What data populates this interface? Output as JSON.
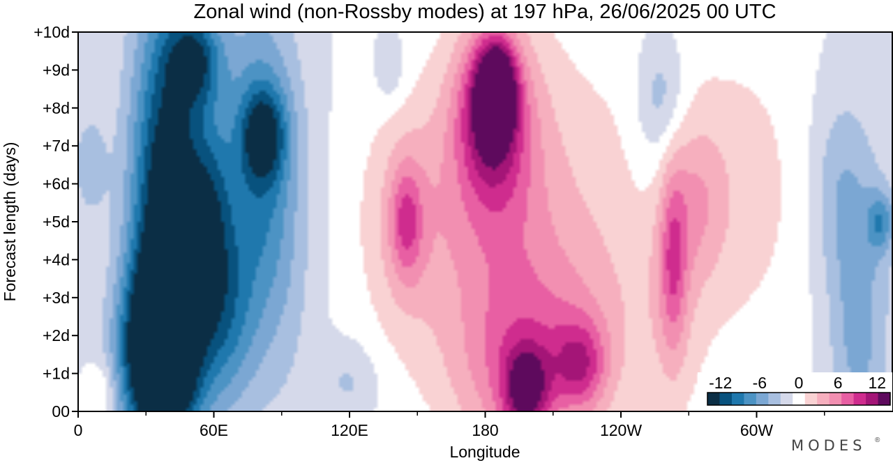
{
  "chart_data": {
    "type": "heatmap",
    "title": "Zonal wind (non-Rossby modes) at 197 hPa,  26/06/2025  00 UTC",
    "xlabel": "Longitude",
    "ylabel": "Forecast length (days)",
    "x_ticks": [
      "0",
      "60E",
      "120E",
      "180",
      "120W",
      "60W"
    ],
    "x_tick_values": [
      0,
      60,
      120,
      180,
      240,
      300
    ],
    "x_range": [
      0,
      360
    ],
    "y_ticks": [
      "00",
      "+1d",
      "+2d",
      "+3d",
      "+4d",
      "+5d",
      "+6d",
      "+7d",
      "+8d",
      "+9d",
      "+10d"
    ],
    "y_range": [
      0,
      10
    ],
    "colorbar": {
      "labels": [
        "-12",
        "-6",
        "0",
        "6",
        "12"
      ],
      "label_values": [
        -12,
        -6,
        0,
        6,
        12
      ],
      "levels": [
        -14,
        -12,
        -10,
        -8,
        -6,
        -4,
        -2,
        0,
        2,
        4,
        6,
        8,
        10,
        12,
        14
      ],
      "colors": [
        "#0b2e45",
        "#08527e",
        "#1f78ad",
        "#4c93c4",
        "#7ba7d3",
        "#a8bfe0",
        "#d5d9ea",
        "#ffffff",
        "#f9d2d3",
        "#f6afbe",
        "#f28fb1",
        "#e85fa3",
        "#cf2c8e",
        "#a41577",
        "#5e0a5d"
      ]
    },
    "brand": "MODES",
    "features": [
      {
        "lon": 35,
        "day": 1.6,
        "value": -16,
        "rx": 16,
        "ry": 2.2
      },
      {
        "lon": 38,
        "day": 4.5,
        "value": -10,
        "rx": 15,
        "ry": 6.0
      },
      {
        "lon": 52,
        "day": 9.3,
        "value": -8,
        "rx": 12,
        "ry": 1.2
      },
      {
        "lon": 42,
        "day": 5.0,
        "value": -6,
        "rx": 18,
        "ry": 6.0
      },
      {
        "lon": 65,
        "day": 2.5,
        "value": -6,
        "rx": 14,
        "ry": 2.5
      },
      {
        "lon": 58,
        "day": 5.0,
        "value": -6,
        "rx": 10,
        "ry": 2.5
      },
      {
        "lon": 82,
        "day": 7.3,
        "value": -8,
        "rx": 10,
        "ry": 1.2
      },
      {
        "lon": 80,
        "day": 6.5,
        "value": -5,
        "rx": 13,
        "ry": 4.0
      },
      {
        "lon": 70,
        "day": 6.0,
        "value": -3,
        "rx": 24,
        "ry": 5.0
      },
      {
        "lon": 92,
        "day": 5.0,
        "value": -2.5,
        "rx": 14,
        "ry": 5.0
      },
      {
        "lon": 5,
        "day": 6.5,
        "value": -3,
        "rx": 8,
        "ry": 1.5
      },
      {
        "lon": 120,
        "day": 0.8,
        "value": -2.5,
        "rx": 12,
        "ry": 1.0
      },
      {
        "lon": 138,
        "day": 9.0,
        "value": -2.5,
        "rx": 7,
        "ry": 1.0
      },
      {
        "lon": 355,
        "day": 5.0,
        "value": -6,
        "rx": 6,
        "ry": 0.8
      },
      {
        "lon": 345,
        "day": 4.0,
        "value": -4,
        "rx": 14,
        "ry": 3.5
      },
      {
        "lon": 335,
        "day": 6.0,
        "value": -2.5,
        "rx": 12,
        "ry": 2.5
      },
      {
        "lon": 345,
        "day": 1.0,
        "value": -2.5,
        "rx": 12,
        "ry": 2.5
      },
      {
        "lon": 258,
        "day": 8.3,
        "value": -3,
        "rx": 10,
        "ry": 1.5
      },
      {
        "lon": 258,
        "day": 7.0,
        "value": -2.5,
        "rx": 13,
        "ry": 3.0
      },
      {
        "lon": 185,
        "day": 8.5,
        "value": 12,
        "rx": 8,
        "ry": 1.2
      },
      {
        "lon": 182,
        "day": 8.0,
        "value": 9,
        "rx": 14,
        "ry": 2.0
      },
      {
        "lon": 185,
        "day": 7.0,
        "value": 5,
        "rx": 22,
        "ry": 3.5
      },
      {
        "lon": 178,
        "day": 5.0,
        "value": 3,
        "rx": 50,
        "ry": 4.0
      },
      {
        "lon": 198,
        "day": 0.5,
        "value": 10,
        "rx": 10,
        "ry": 1.2
      },
      {
        "lon": 190,
        "day": 1.0,
        "value": 5,
        "rx": 28,
        "ry": 2.5
      },
      {
        "lon": 145,
        "day": 5.0,
        "value": 6,
        "rx": 7,
        "ry": 1.5
      },
      {
        "lon": 145,
        "day": 5.0,
        "value": 3,
        "rx": 18,
        "ry": 3.0
      },
      {
        "lon": 222,
        "day": 1.2,
        "value": 7,
        "rx": 12,
        "ry": 1.2
      },
      {
        "lon": 215,
        "day": 2.0,
        "value": 3,
        "rx": 30,
        "ry": 2.5
      },
      {
        "lon": 263,
        "day": 4.0,
        "value": 6,
        "rx": 6,
        "ry": 2.5
      },
      {
        "lon": 263,
        "day": 4.5,
        "value": 3,
        "rx": 13,
        "ry": 4.0
      },
      {
        "lon": 275,
        "day": 5.5,
        "value": 3,
        "rx": 12,
        "ry": 2.0
      },
      {
        "lon": 230,
        "day": 4.5,
        "value": 2.2,
        "rx": 65,
        "ry": 6.0
      },
      {
        "lon": 295,
        "day": 6.0,
        "value": 2.2,
        "rx": 28,
        "ry": 4.0
      },
      {
        "lon": 10,
        "day": 0.5,
        "value": 3,
        "rx": 6,
        "ry": 0.8
      }
    ]
  }
}
